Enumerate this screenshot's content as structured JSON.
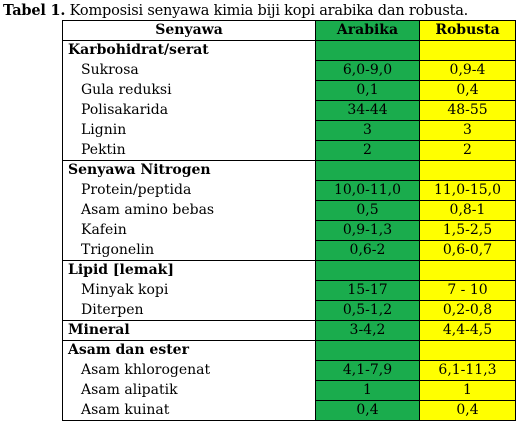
{
  "caption": {
    "label": "Tabel 1.",
    "text": " Komposisi senyawa kimia biji kopi arabika dan robusta."
  },
  "header": {
    "col1": "Senyawa",
    "col2": "Arabika",
    "col3": "Robusta"
  },
  "colors": {
    "arabika": "#1aac4d",
    "robusta": "#ffff00"
  },
  "rows": [
    {
      "type": "category",
      "name": "Karbohidrat/serat",
      "arabika": "",
      "robusta": ""
    },
    {
      "type": "item",
      "name": "Sukrosa",
      "arabika": "6,0-9,0",
      "robusta": "0,9-4"
    },
    {
      "type": "item",
      "name": "Gula reduksi",
      "arabika": "0,1",
      "robusta": "0,4"
    },
    {
      "type": "item",
      "name": "Polisakarida",
      "arabika": "34-44",
      "robusta": "48-55"
    },
    {
      "type": "item",
      "name": "Lignin",
      "arabika": "3",
      "robusta": "3"
    },
    {
      "type": "item",
      "name": "Pektin",
      "arabika": "2",
      "robusta": "2"
    },
    {
      "type": "category",
      "name": "Senyawa Nitrogen",
      "arabika": "",
      "robusta": ""
    },
    {
      "type": "item",
      "name": "Protein/peptida",
      "arabika": "10,0-11,0",
      "robusta": "11,0-15,0"
    },
    {
      "type": "item",
      "name": "Asam amino bebas",
      "arabika": "0,5",
      "robusta": "0,8-1"
    },
    {
      "type": "item",
      "name": "Kafein",
      "arabika": "0,9-1,3",
      "robusta": "1,5-2,5"
    },
    {
      "type": "item",
      "name": "Trigonelin",
      "arabika": "0,6-2",
      "robusta": "0,6-0,7"
    },
    {
      "type": "category",
      "name": "Lipid [lemak]",
      "arabika": "",
      "robusta": ""
    },
    {
      "type": "item",
      "name": "Minyak kopi",
      "arabika": "15-17",
      "robusta": "7 - 10"
    },
    {
      "type": "item",
      "name": "Diterpen",
      "arabika": "0,5-1,2",
      "robusta": "0,2-0,8"
    },
    {
      "type": "category",
      "name": "Mineral",
      "arabika": "3-4,2",
      "robusta": "4,4-4,5"
    },
    {
      "type": "category",
      "name": "Asam dan ester",
      "arabika": "",
      "robusta": ""
    },
    {
      "type": "item",
      "name": "Asam khlorogenat",
      "arabika": "4,1-7,9",
      "robusta": "6,1-11,3"
    },
    {
      "type": "item",
      "name": "Asam alipatik",
      "arabika": "1",
      "robusta": "1"
    },
    {
      "type": "item",
      "name": "Asam kuinat",
      "arabika": "0,4",
      "robusta": "0,4"
    }
  ]
}
